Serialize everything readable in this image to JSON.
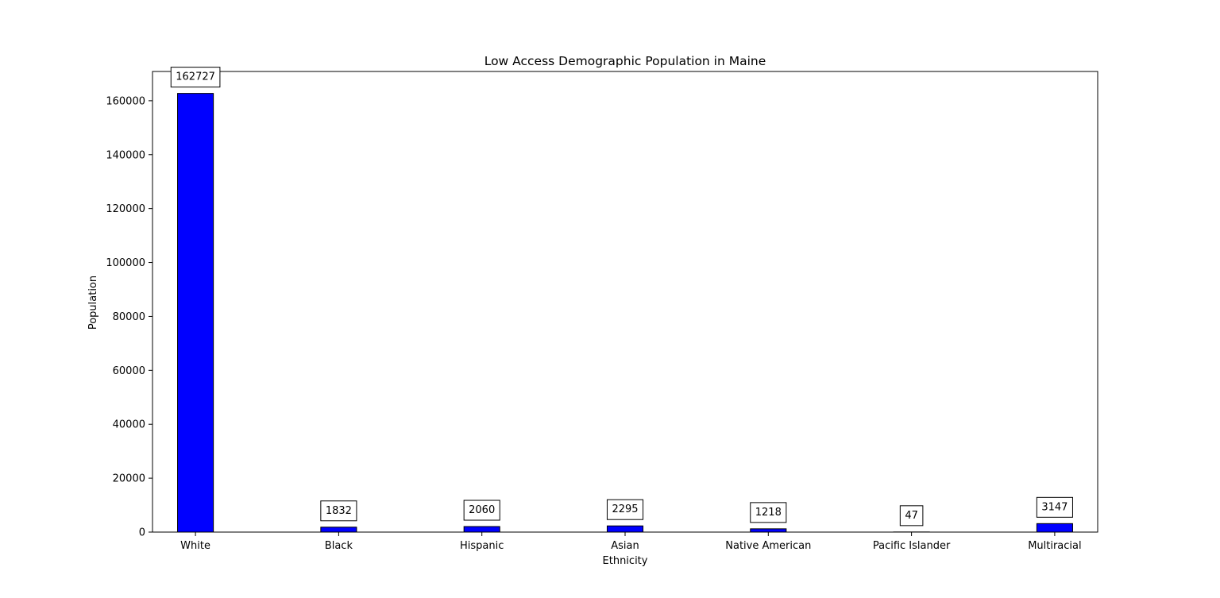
{
  "chart_data": {
    "type": "bar",
    "title": "Low Access Demographic Population in Maine",
    "xlabel": "Ethnicity",
    "ylabel": "Population",
    "categories": [
      "White",
      "Black",
      "Hispanic",
      "Asian",
      "Native American",
      "Pacific Islander",
      "Multiracial"
    ],
    "values": [
      162727,
      1832,
      2060,
      2295,
      1218,
      47,
      3147
    ],
    "data_labels": [
      "162727",
      "1832",
      "2060",
      "2295",
      "1218",
      "47",
      "3147"
    ],
    "ylim": [
      0,
      170864
    ],
    "yticks": [
      0,
      20000,
      40000,
      60000,
      80000,
      100000,
      120000,
      140000,
      160000
    ],
    "ytick_labels": [
      "0",
      "20000",
      "40000",
      "60000",
      "80000",
      "100000",
      "120000",
      "140000",
      "160000"
    ],
    "grid": false,
    "legend": "none",
    "bar_color": "#0000ff",
    "bar_edge_color": "#000000"
  }
}
